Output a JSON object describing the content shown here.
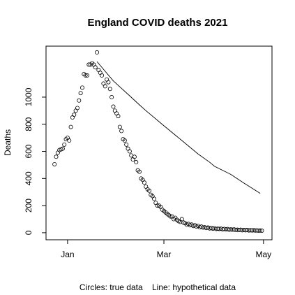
{
  "chart_data": {
    "type": "scatter",
    "title": "England COVID deaths 2021",
    "y_label": "Deaths",
    "caption": "Circles: true data    Line: hypothetical data",
    "xlim": [
      -13.2,
      125.2
    ],
    "xticks": [
      {
        "value": 0,
        "label": "Jan"
      },
      {
        "value": 59,
        "label": "Mar"
      },
      {
        "value": 120,
        "label": "May"
      }
    ],
    "ylim": [
      -52,
      1376
    ],
    "yticks": [
      0,
      200,
      400,
      600,
      800,
      1000
    ],
    "series": [
      {
        "style": "points",
        "color": "#000000",
        "x": [
          -8,
          -7,
          -6,
          -5,
          -4,
          -3,
          -2,
          -1,
          0,
          1,
          2,
          3,
          4,
          5,
          6,
          7,
          8,
          9,
          10,
          11,
          12,
          13,
          14,
          15,
          16,
          17,
          18,
          19,
          20,
          21,
          22,
          23,
          24,
          25,
          26,
          27,
          28,
          29,
          30,
          31,
          32,
          33,
          34,
          35,
          36,
          37,
          38,
          39,
          40,
          41,
          42,
          43,
          44,
          45,
          46,
          47,
          48,
          49,
          50,
          51,
          52,
          53,
          54,
          55,
          56,
          57,
          58,
          59,
          60,
          61,
          62,
          63,
          64,
          65,
          66,
          67,
          68,
          69,
          70,
          71,
          72,
          73,
          74,
          75,
          76,
          77,
          78,
          79,
          80,
          81,
          82,
          83,
          84,
          85,
          86,
          87,
          88,
          89,
          90,
          91,
          92,
          93,
          94,
          95,
          96,
          97,
          98,
          99,
          100,
          101,
          102,
          103,
          104,
          105,
          106,
          107,
          108,
          109,
          110,
          111,
          112,
          113,
          114,
          115,
          116,
          117,
          118,
          119
        ],
        "values": [
          505,
          560,
          590,
          610,
          615,
          620,
          650,
          690,
          700,
          680,
          780,
          850,
          870,
          900,
          920,
          975,
          1030,
          1070,
          1170,
          1160,
          1160,
          1240,
          1240,
          1250,
          1240,
          1220,
          1330,
          1200,
          1180,
          1160,
          1100,
          1080,
          1130,
          1110,
          1060,
          1000,
          930,
          900,
          880,
          860,
          780,
          750,
          690,
          680,
          650,
          620,
          600,
          570,
          540,
          560,
          520,
          460,
          450,
          400,
          390,
          370,
          340,
          320,
          310,
          280,
          270,
          250,
          220,
          200,
          200,
          190,
          170,
          160,
          150,
          140,
          130,
          120,
          120,
          100,
          110,
          95,
          85,
          80,
          100,
          75,
          70,
          60,
          65,
          55,
          60,
          50,
          55,
          45,
          50,
          40,
          45,
          38,
          40,
          35,
          38,
          32,
          35,
          30,
          33,
          28,
          30,
          28,
          30,
          25,
          28,
          25,
          27,
          22,
          25,
          22,
          25,
          20,
          22,
          20,
          22,
          18,
          20,
          18,
          20,
          17,
          18,
          17,
          18,
          16,
          17,
          15,
          16,
          15
        ]
      },
      {
        "style": "line",
        "color": "#000000",
        "x": [
          18,
          28,
          38,
          44,
          48,
          59,
          70,
          80,
          87,
          90,
          100,
          108,
          118
        ],
        "values": [
          1262,
          1120,
          1010,
          943,
          900,
          789,
          680,
          580,
          520,
          490,
          430,
          366,
          290
        ]
      }
    ]
  }
}
